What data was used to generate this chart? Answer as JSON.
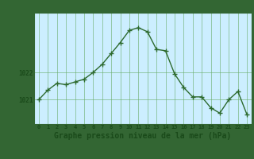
{
  "x": [
    0,
    1,
    2,
    3,
    4,
    5,
    6,
    7,
    8,
    9,
    10,
    11,
    12,
    13,
    14,
    15,
    16,
    17,
    18,
    19,
    20,
    21,
    22,
    23
  ],
  "y": [
    1021.0,
    1021.35,
    1021.6,
    1021.55,
    1021.65,
    1021.75,
    1022.0,
    1022.3,
    1022.7,
    1023.1,
    1023.55,
    1023.65,
    1023.5,
    1022.85,
    1022.8,
    1021.95,
    1021.45,
    1021.1,
    1021.1,
    1020.7,
    1020.5,
    1021.0,
    1021.3,
    1020.45
  ],
  "line_color": "#2d6a2d",
  "marker": "+",
  "marker_size": 4,
  "linewidth": 1.0,
  "bg_color": "#cceeff",
  "grid_color": "#66aa66",
  "xlabel": "Graphe pression niveau de la mer (hPa)",
  "xlabel_fontsize": 7,
  "ytick_labels": [
    "1021",
    "1022"
  ],
  "ytick_vals": [
    1021,
    1022
  ],
  "xtick_labels": [
    "0",
    "1",
    "2",
    "3",
    "4",
    "5",
    "6",
    "7",
    "8",
    "9",
    "10",
    "11",
    "12",
    "13",
    "14",
    "15",
    "16",
    "17",
    "18",
    "19",
    "20",
    "21",
    "22",
    "23"
  ],
  "ylim": [
    1020.1,
    1024.2
  ],
  "xlim": [
    -0.5,
    23.5
  ],
  "fig_bg_color": "#336633"
}
